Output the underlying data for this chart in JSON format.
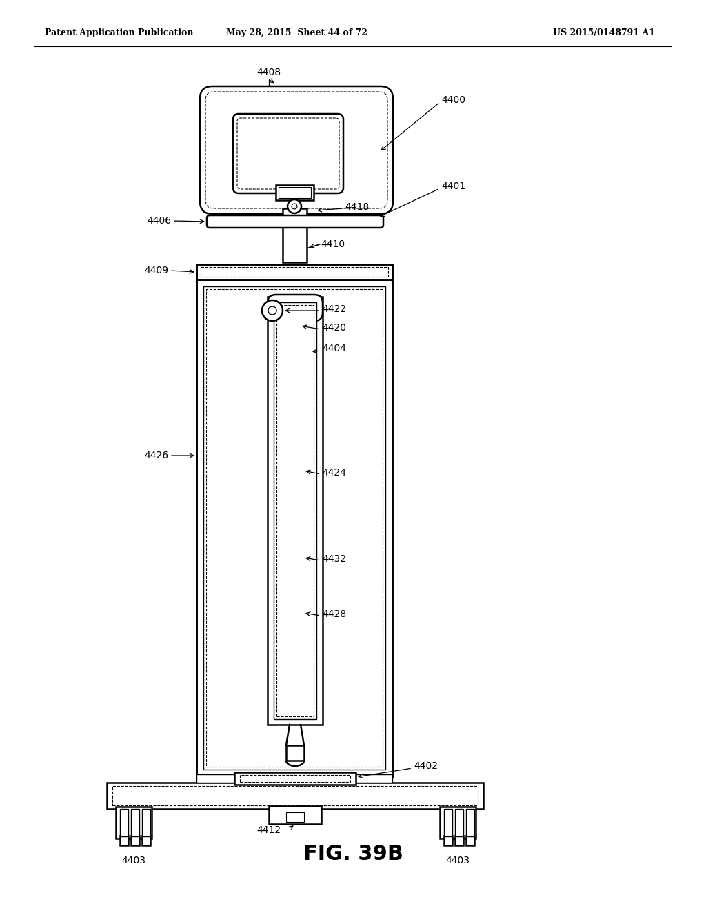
{
  "header_left": "Patent Application Publication",
  "header_mid": "May 28, 2015  Sheet 44 of 72",
  "header_right": "US 2015/0148791 A1",
  "fig_label": "FIG. 39B",
  "background": "#ffffff"
}
